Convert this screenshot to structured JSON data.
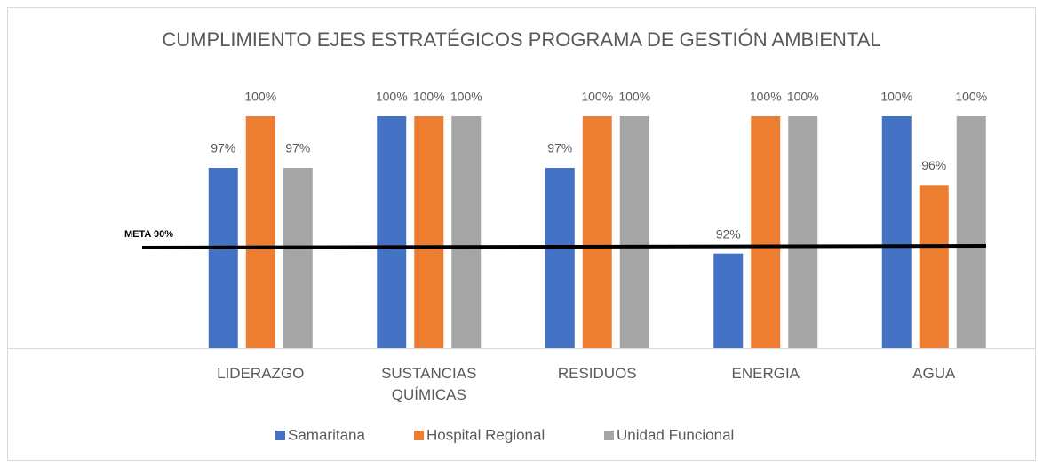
{
  "chart_data": {
    "type": "bar",
    "title": "CUMPLIMIENTO EJES ESTRATÉGICOS PROGRAMA DE GESTIÓN AMBIENTAL",
    "categories": [
      "LIDERAZGO",
      "SUSTANCIAS QUÍMICAS",
      "RESIDUOS",
      "ENERGIA",
      "AGUA"
    ],
    "series": [
      {
        "name": "Samaritana",
        "color": "#4472c4",
        "values": [
          97,
          100,
          97,
          92,
          100
        ],
        "value_labels": [
          "97%",
          "100%",
          "97%",
          "92%",
          "100%"
        ]
      },
      {
        "name": "Hospital Regional",
        "color": "#ed7d31",
        "values": [
          100,
          100,
          100,
          100,
          96
        ],
        "value_labels": [
          "100%",
          "100%",
          "100%",
          "100%",
          "96%"
        ]
      },
      {
        "name": "Unidad Funcional",
        "color": "#a5a5a5",
        "values": [
          97,
          100,
          100,
          100,
          100
        ],
        "value_labels": [
          "97%",
          "100%",
          "100%",
          "100%",
          "100%"
        ]
      }
    ],
    "ylim": [
      86.5,
      100
    ],
    "annotation": "META 90%",
    "legend": "bottom"
  }
}
